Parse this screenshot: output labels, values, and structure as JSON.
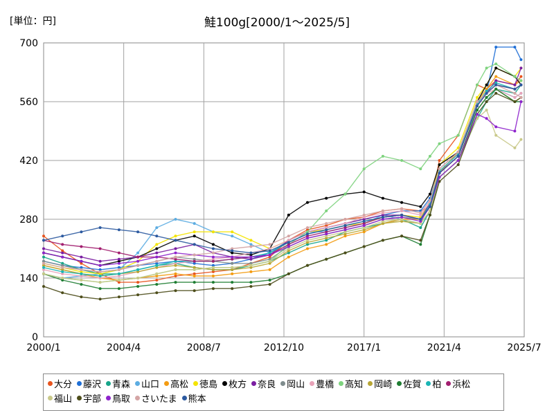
{
  "chart_data": {
    "type": "line",
    "title": "鮭100g[2000/1～2025/5]",
    "unit_label": "[単位：円]",
    "x_tick_labels": [
      "2000/1",
      "2004/4",
      "2008/7",
      "2012/10",
      "2017/1",
      "2021/4",
      "2025/7"
    ],
    "y_tick_labels": [
      "0",
      "140",
      "280",
      "420",
      "560",
      "700"
    ],
    "ylim": [
      0,
      700
    ],
    "xlim": [
      "2000/1",
      "2025/7"
    ],
    "grid": true,
    "legend_position": "bottom",
    "x_points": [
      2000.0,
      2001.0,
      2002.0,
      2003.0,
      2004.0,
      2005.0,
      2006.0,
      2007.0,
      2008.0,
      2009.0,
      2010.0,
      2011.0,
      2012.0,
      2013.0,
      2014.0,
      2015.0,
      2016.0,
      2017.0,
      2018.0,
      2019.0,
      2020.0,
      2020.5,
      2021.0,
      2022.0,
      2023.0,
      2023.5,
      2024.0,
      2025.0,
      2025.33
    ],
    "series": [
      {
        "name": "大分",
        "color": "#e8541e",
        "values": [
          240,
          205,
          175,
          150,
          130,
          130,
          135,
          145,
          150,
          155,
          160,
          175,
          190,
          230,
          255,
          265,
          280,
          285,
          300,
          305,
          300,
          310,
          420,
          480,
          600,
          590,
          610,
          600,
          620
        ]
      },
      {
        "name": "藤沢",
        "color": "#1f6fd6",
        "values": [
          180,
          170,
          165,
          160,
          165,
          170,
          175,
          180,
          175,
          170,
          175,
          185,
          200,
          230,
          250,
          260,
          270,
          280,
          290,
          300,
          300,
          330,
          400,
          440,
          560,
          580,
          690,
          690,
          660
        ]
      },
      {
        "name": "青森",
        "color": "#17a589",
        "values": [
          190,
          175,
          160,
          150,
          150,
          160,
          170,
          175,
          165,
          160,
          160,
          170,
          180,
          200,
          220,
          230,
          250,
          260,
          270,
          280,
          260,
          300,
          380,
          420,
          520,
          560,
          590,
          580,
          600
        ]
      },
      {
        "name": "山口",
        "color": "#5dade2",
        "values": [
          150,
          140,
          145,
          150,
          160,
          200,
          260,
          280,
          270,
          250,
          240,
          220,
          200,
          230,
          250,
          250,
          260,
          270,
          290,
          280,
          270,
          320,
          390,
          440,
          540,
          570,
          590,
          570,
          580
        ]
      },
      {
        "name": "高松",
        "color": "#f39c12",
        "values": [
          170,
          160,
          150,
          140,
          135,
          140,
          145,
          150,
          145,
          145,
          150,
          155,
          160,
          190,
          210,
          220,
          240,
          250,
          270,
          280,
          280,
          310,
          390,
          440,
          560,
          590,
          620,
          600,
          610
        ]
      },
      {
        "name": "徳島",
        "color": "#f4e400",
        "values": [
          175,
          165,
          155,
          150,
          160,
          180,
          220,
          240,
          250,
          250,
          250,
          230,
          210,
          230,
          250,
          255,
          265,
          270,
          285,
          290,
          285,
          320,
          410,
          450,
          570,
          600,
          640,
          620,
          640
        ]
      },
      {
        "name": "枚方",
        "color": "#000000",
        "values": [
          200,
          190,
          180,
          170,
          180,
          190,
          210,
          230,
          240,
          220,
          200,
          195,
          210,
          290,
          320,
          330,
          340,
          345,
          330,
          320,
          310,
          340,
          410,
          440,
          560,
          600,
          640,
          620,
          600
        ]
      },
      {
        "name": "奈良",
        "color": "#7b1fa2",
        "values": [
          210,
          200,
          190,
          180,
          185,
          190,
          200,
          210,
          220,
          200,
          190,
          185,
          195,
          230,
          250,
          260,
          270,
          280,
          290,
          290,
          280,
          320,
          390,
          430,
          550,
          580,
          610,
          600,
          640
        ]
      },
      {
        "name": "岡山",
        "color": "#7f8c8d",
        "values": [
          180,
          170,
          160,
          155,
          160,
          170,
          180,
          190,
          185,
          180,
          175,
          175,
          185,
          215,
          235,
          245,
          255,
          265,
          280,
          285,
          280,
          310,
          390,
          430,
          550,
          580,
          600,
          590,
          600
        ]
      },
      {
        "name": "豊橋",
        "color": "#e8a3b8",
        "values": [
          160,
          150,
          145,
          140,
          145,
          155,
          165,
          175,
          180,
          185,
          190,
          200,
          210,
          230,
          250,
          260,
          270,
          285,
          295,
          300,
          290,
          320,
          400,
          440,
          560,
          580,
          590,
          570,
          580
        ]
      },
      {
        "name": "高知",
        "color": "#7ed37e",
        "values": [
          150,
          140,
          135,
          130,
          135,
          140,
          150,
          160,
          160,
          165,
          165,
          170,
          180,
          220,
          250,
          300,
          340,
          400,
          430,
          420,
          400,
          430,
          460,
          480,
          600,
          640,
          650,
          620,
          610
        ]
      },
      {
        "name": "岡崎",
        "color": "#b8a634",
        "values": [
          170,
          160,
          150,
          145,
          150,
          155,
          165,
          170,
          165,
          160,
          160,
          165,
          175,
          205,
          225,
          235,
          245,
          255,
          270,
          275,
          270,
          300,
          380,
          420,
          540,
          570,
          590,
          560,
          570
        ]
      },
      {
        "name": "佐賀",
        "color": "#1e7d32",
        "values": [
          150,
          135,
          125,
          115,
          115,
          120,
          125,
          130,
          130,
          130,
          130,
          130,
          135,
          150,
          170,
          185,
          200,
          215,
          230,
          240,
          220,
          290,
          380,
          420,
          540,
          570,
          590,
          560,
          560
        ]
      },
      {
        "name": "柏",
        "color": "#1ab5b5",
        "values": [
          165,
          155,
          150,
          145,
          150,
          160,
          170,
          180,
          180,
          180,
          185,
          190,
          200,
          225,
          245,
          255,
          265,
          275,
          285,
          290,
          280,
          315,
          395,
          435,
          555,
          585,
          605,
          590,
          600
        ]
      },
      {
        "name": "浜松",
        "color": "#a21e6f",
        "values": [
          230,
          220,
          215,
          210,
          200,
          190,
          190,
          185,
          180,
          180,
          185,
          190,
          195,
          220,
          240,
          250,
          260,
          270,
          285,
          290,
          280,
          310,
          390,
          430,
          550,
          580,
          600,
          590,
          600
        ]
      },
      {
        "name": "福山",
        "color": "#c9c98a",
        "values": [
          150,
          140,
          135,
          130,
          135,
          140,
          150,
          160,
          160,
          165,
          165,
          170,
          180,
          210,
          230,
          240,
          250,
          260,
          275,
          280,
          270,
          300,
          380,
          420,
          520,
          540,
          480,
          450,
          470
        ]
      },
      {
        "name": "宇部",
        "color": "#4d4d1a",
        "values": [
          120,
          105,
          95,
          90,
          95,
          100,
          105,
          110,
          110,
          115,
          115,
          120,
          125,
          150,
          170,
          185,
          200,
          215,
          230,
          240,
          230,
          290,
          370,
          410,
          530,
          560,
          580,
          560,
          570
        ]
      },
      {
        "name": "鳥取",
        "color": "#8e24cc",
        "values": [
          200,
          190,
          180,
          170,
          175,
          180,
          190,
          200,
          195,
          190,
          190,
          190,
          195,
          215,
          235,
          245,
          255,
          265,
          280,
          285,
          275,
          310,
          380,
          420,
          530,
          520,
          500,
          490,
          560
        ]
      },
      {
        "name": "さいたま",
        "color": "#d4a5a5",
        "values": [
          175,
          165,
          160,
          155,
          160,
          170,
          180,
          190,
          195,
          200,
          210,
          215,
          220,
          240,
          260,
          270,
          280,
          290,
          300,
          305,
          295,
          325,
          400,
          440,
          560,
          580,
          600,
          580,
          570
        ]
      },
      {
        "name": "熊本",
        "color": "#2c5aa0",
        "values": [
          230,
          240,
          250,
          260,
          255,
          250,
          240,
          230,
          220,
          210,
          205,
          200,
          205,
          225,
          245,
          255,
          265,
          275,
          285,
          290,
          280,
          310,
          390,
          430,
          550,
          580,
          600,
          590,
          600
        ]
      }
    ]
  }
}
